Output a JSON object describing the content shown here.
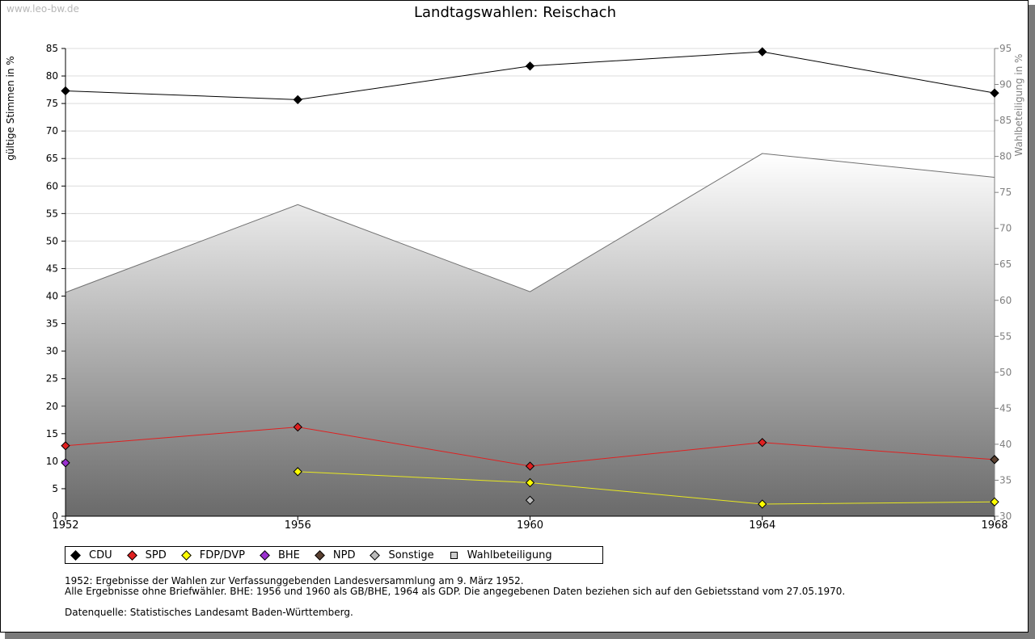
{
  "watermark": "www.leo-bw.de",
  "chart_data": {
    "type": "line",
    "title": "Landtagswahlen: Reischach",
    "ylabel": "gültige Stimmen in %",
    "y2label": "Wahlbeteiligung in %",
    "categories": [
      "1952",
      "1956",
      "1960",
      "1964",
      "1968"
    ],
    "ylim": [
      0,
      85
    ],
    "y2lim": [
      30,
      95
    ],
    "yticks": [
      "0",
      "5",
      "10",
      "15",
      "20",
      "25",
      "30",
      "35",
      "40",
      "45",
      "50",
      "55",
      "60",
      "65",
      "70",
      "75",
      "80",
      "85"
    ],
    "y2ticks": [
      "30",
      "35",
      "40",
      "45",
      "50",
      "55",
      "60",
      "65",
      "70",
      "75",
      "80",
      "85",
      "90",
      "95"
    ],
    "grid": true,
    "series": [
      {
        "name": "CDU",
        "color": "#000000",
        "marker": "#000000",
        "values": [
          77.3,
          75.7,
          81.8,
          84.4,
          76.9
        ]
      },
      {
        "name": "SPD",
        "color": "#e02020",
        "marker": "#e02020",
        "values": [
          12.8,
          16.2,
          9.1,
          13.4,
          10.3
        ]
      },
      {
        "name": "FDP/DVP",
        "color": "#e8e820",
        "marker": "#ffff00",
        "values": [
          null,
          8.1,
          6.1,
          2.2,
          2.6
        ]
      },
      {
        "name": "BHE",
        "color": "#8a2be2",
        "marker": "#9b30d0",
        "values": [
          9.7,
          null,
          null,
          null,
          null
        ]
      },
      {
        "name": "NPD",
        "color": "#5a4030",
        "marker": "#5a4030",
        "values": [
          null,
          null,
          null,
          null,
          10.3
        ]
      },
      {
        "name": "Sonstige",
        "color": "#aaaaaa",
        "marker": "#bbbbbb",
        "values": [
          null,
          null,
          2.9,
          null,
          null
        ]
      }
    ],
    "turnout": {
      "name": "Wahlbeteiligung",
      "axis": "right",
      "values": [
        61.1,
        73.3,
        61.2,
        80.4,
        77.1
      ]
    }
  },
  "legend": [
    {
      "label": "CDU",
      "color": "#000000",
      "shape": "diamond"
    },
    {
      "label": "SPD",
      "color": "#e02020",
      "shape": "diamond"
    },
    {
      "label": "FDP/DVP",
      "color": "#ffff00",
      "shape": "diamond"
    },
    {
      "label": "BHE",
      "color": "#9b30d0",
      "shape": "diamond"
    },
    {
      "label": "NPD",
      "color": "#5a4030",
      "shape": "diamond"
    },
    {
      "label": "Sonstige",
      "color": "#bbbbbb",
      "shape": "diamond"
    },
    {
      "label": "Wahlbeteiligung",
      "color": "#cccccc",
      "shape": "square"
    }
  ],
  "notes": {
    "line1": "1952: Ergebnisse der Wahlen zur Verfassunggebenden Landesversammlung am 9. März 1952.",
    "line2": "Alle Ergebnisse ohne Briefwähler. BHE: 1956 und 1960 als GB/BHE, 1964 als GDP. Die angegebenen Daten beziehen sich auf den Gebietsstand vom 27.05.1970.",
    "source": "Datenquelle: Statistisches Landesamt Baden-Württemberg."
  }
}
